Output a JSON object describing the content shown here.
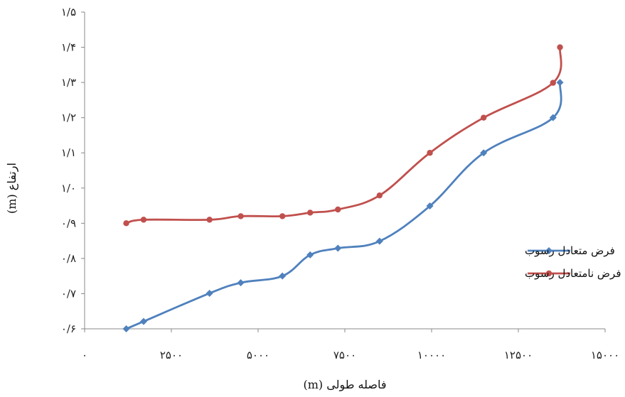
{
  "chart_data": {
    "type": "line",
    "xlabel": "فاصله طولی (m)",
    "ylabel": "ارتفاع (m)",
    "xlim": [
      0,
      15000
    ],
    "ylim": [
      0.6,
      1.5
    ],
    "x_ticks": [
      0,
      2500,
      5000,
      7500,
      10000,
      12500,
      15000
    ],
    "x_tick_labels": [
      "۰",
      "۲۵۰۰",
      "۵۰۰۰",
      "۷۵۰۰",
      "۱۰۰۰۰",
      "۱۲۵۰۰",
      "۱۵۰۰۰"
    ],
    "y_ticks": [
      0.6,
      0.7,
      0.8,
      0.9,
      1.0,
      1.1,
      1.2,
      1.3,
      1.4,
      1.5
    ],
    "y_tick_labels": [
      "۰/۶",
      "۰/۷",
      "۰/۸",
      "۰/۹",
      "۱/۰",
      "۱/۱",
      "۱/۲",
      "۱/۳",
      "۱/۴",
      "۱/۵"
    ],
    "grid": false,
    "legend_position": "right",
    "series": [
      {
        "name": "فرض متعادل رسوب",
        "color": "#4F81BD",
        "marker": "diamond",
        "x": [
          1200,
          1700,
          3600,
          4500,
          5700,
          6500,
          7300,
          8500,
          9950,
          11500,
          13500,
          13700
        ],
        "y": [
          0.6,
          0.621,
          0.701,
          0.731,
          0.75,
          0.81,
          0.829,
          0.849,
          0.949,
          1.1,
          1.2,
          1.3
        ]
      },
      {
        "name": "فرض نامتعادل رسوب",
        "color": "#C0504D",
        "marker": "circle",
        "x": [
          1200,
          1700,
          3600,
          4500,
          5700,
          6500,
          7300,
          8500,
          9950,
          11500,
          13500,
          13700
        ],
        "y": [
          0.9,
          0.91,
          0.91,
          0.92,
          0.92,
          0.93,
          0.939,
          0.979,
          1.1,
          1.2,
          1.299,
          1.4
        ]
      }
    ]
  }
}
